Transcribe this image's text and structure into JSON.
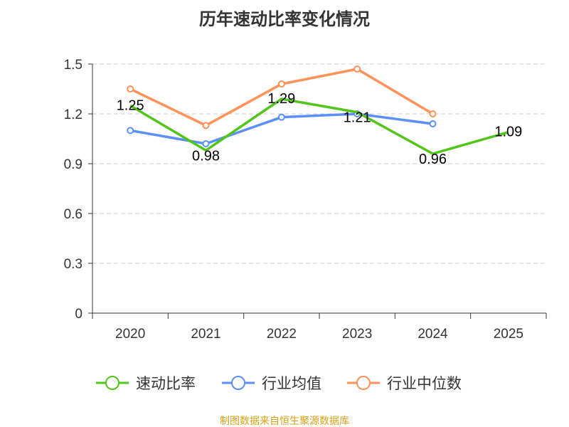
{
  "chart_data": {
    "type": "line",
    "title": "历年速动比率变化情况",
    "categories": [
      "2020",
      "2021",
      "2022",
      "2023",
      "2024",
      "2025"
    ],
    "ylim": [
      0,
      1.5
    ],
    "yticks": [
      "0",
      "0.3",
      "0.6",
      "0.9",
      "1.2",
      "1.5"
    ],
    "grid": true,
    "legend_position": "bottom",
    "series": [
      {
        "name": "速动比率",
        "color": "#52c41a",
        "values": [
          1.25,
          0.98,
          1.29,
          1.21,
          0.96,
          1.09
        ],
        "labels": [
          "1.25",
          "0.98",
          "1.29",
          "1.21",
          "0.96",
          "1.09"
        ]
      },
      {
        "name": "行业均值",
        "color": "#5b8ff9",
        "values": [
          1.1,
          1.02,
          1.18,
          1.2,
          1.14,
          null
        ]
      },
      {
        "name": "行业中位数",
        "color": "#ff9159",
        "values": [
          1.35,
          1.13,
          1.38,
          1.47,
          1.2,
          null
        ]
      }
    ]
  },
  "source": "制图数据来自恒生聚源数据库"
}
